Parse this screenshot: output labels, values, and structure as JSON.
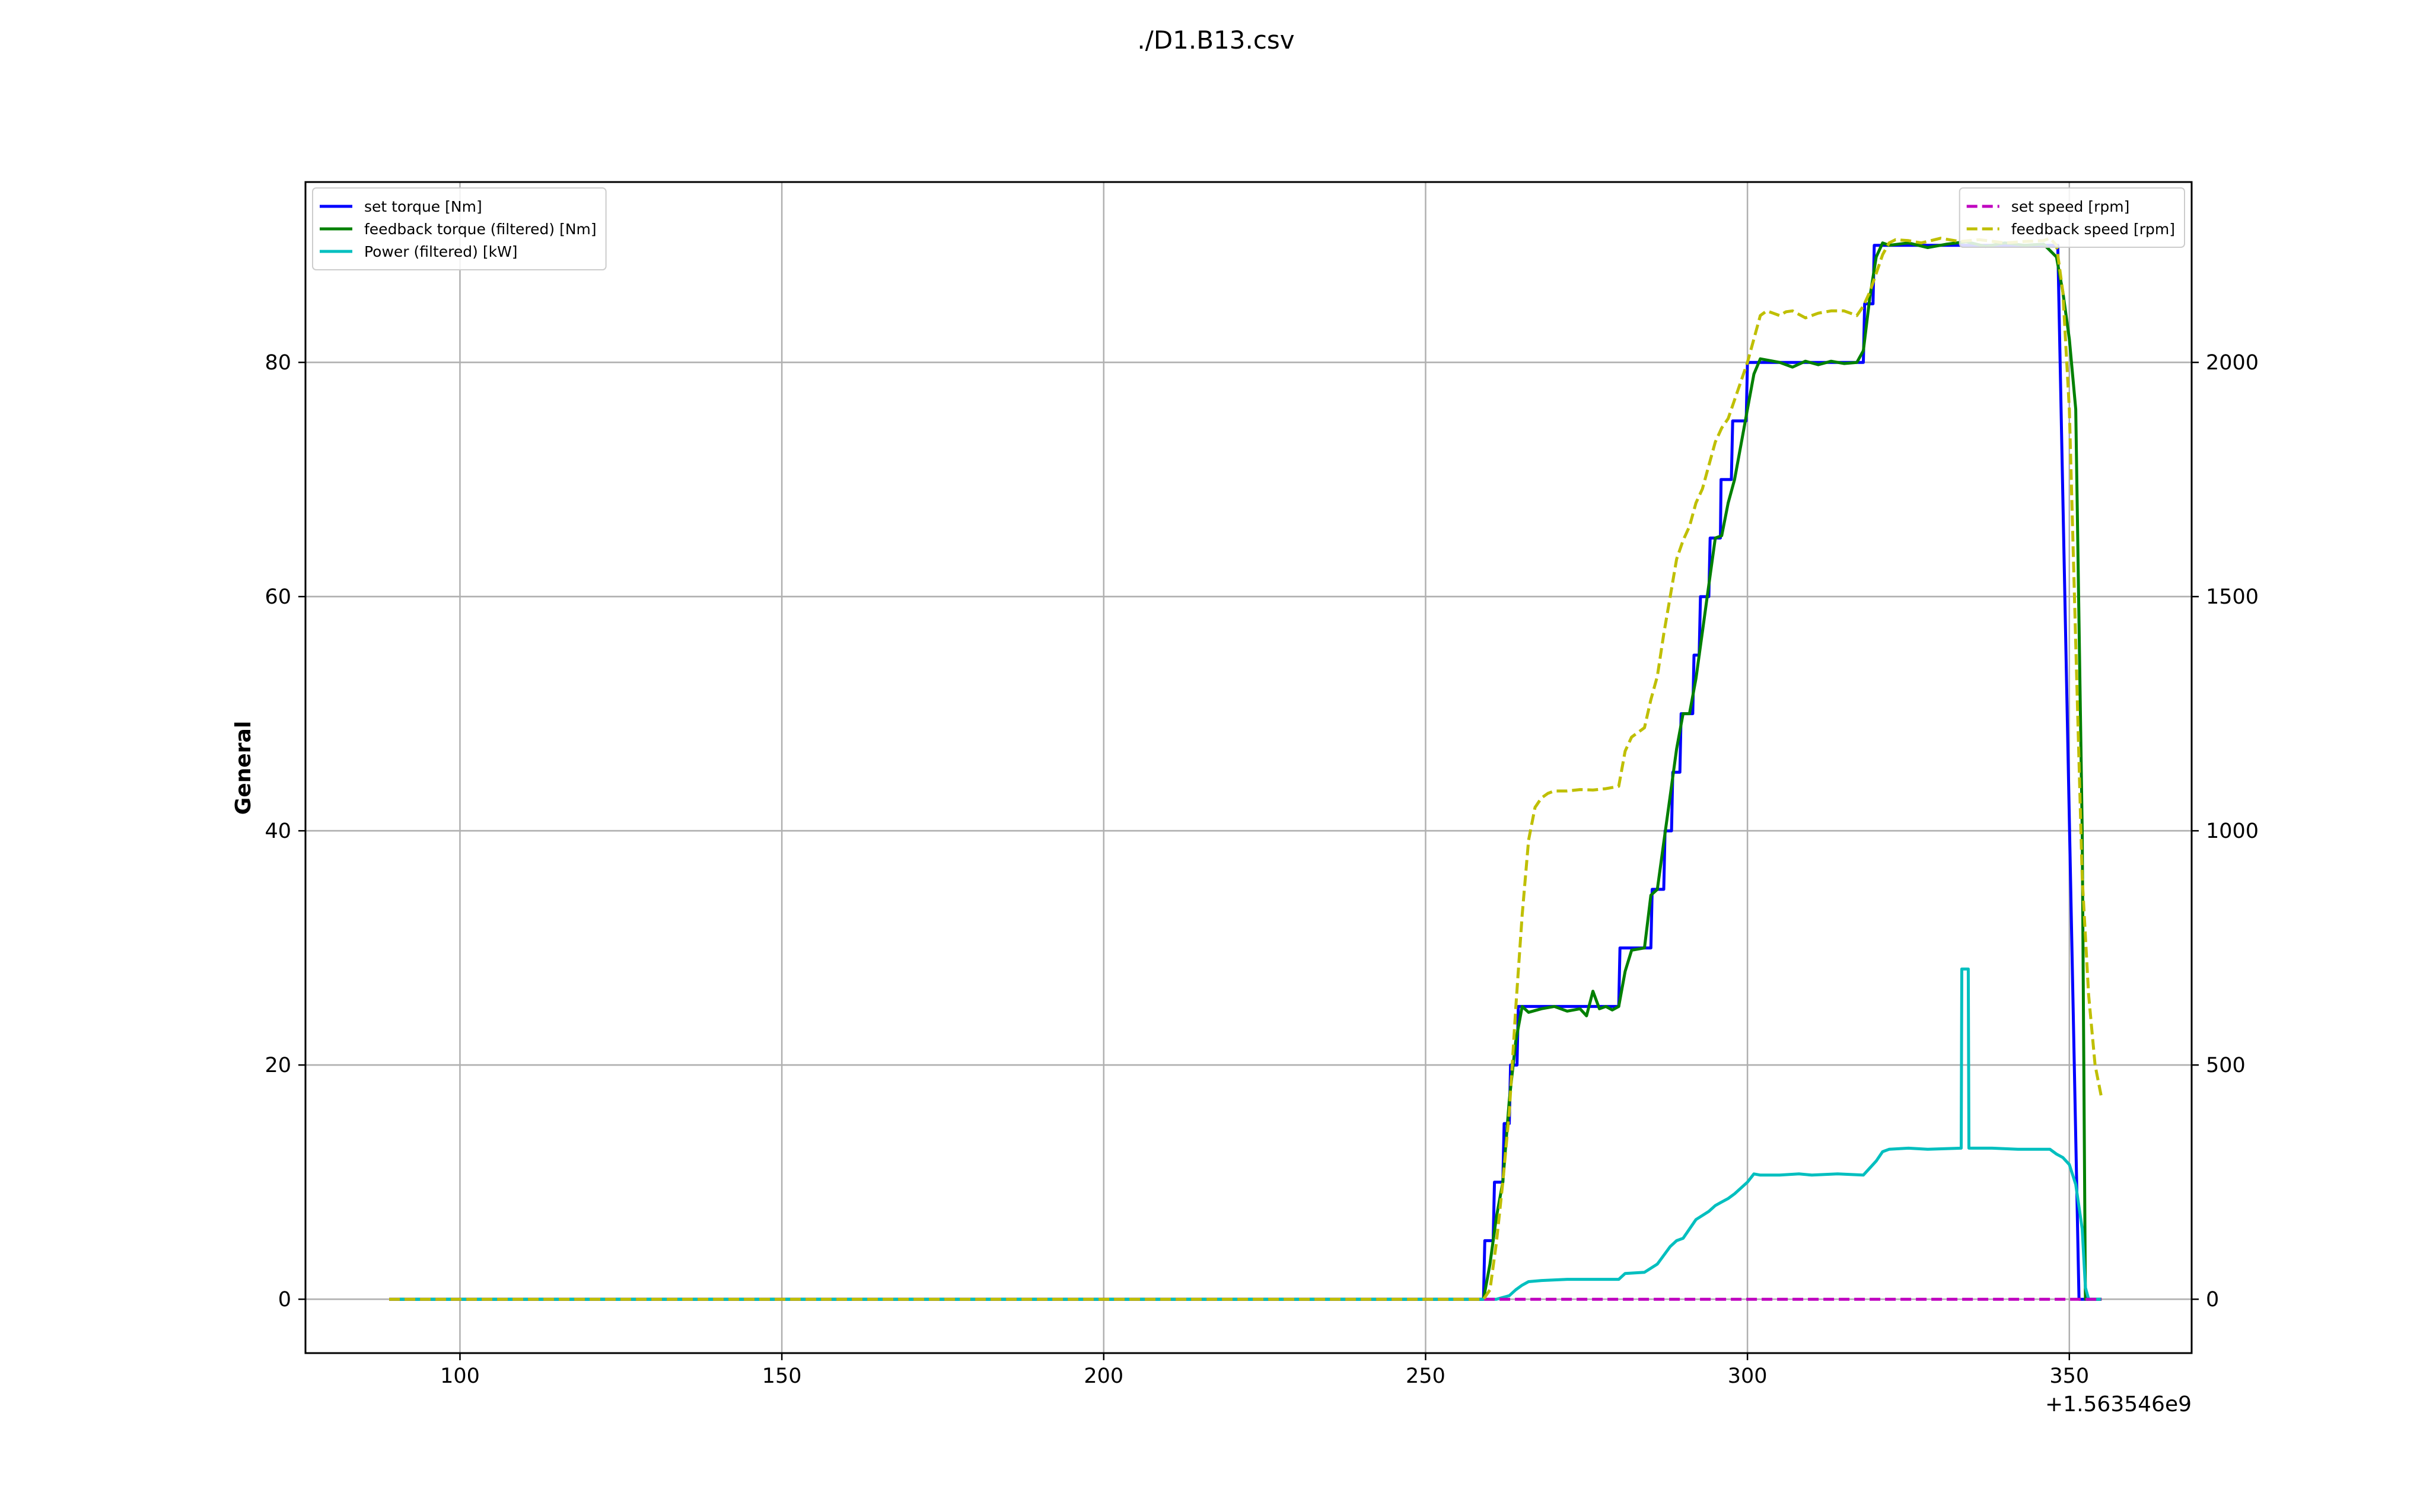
{
  "chart_data": {
    "type": "line",
    "title": "./D1.B13.csv",
    "xlabel": "",
    "ylabel": "General",
    "y2label": "",
    "x_offset_label": "+1.563546e9",
    "xlim": [
      76,
      369
    ],
    "ylim": [
      -4.6,
      95.4
    ],
    "y2lim": [
      -115,
      2385
    ],
    "grid": true,
    "x_ticks": [
      {
        "value": 100,
        "label": "100"
      },
      {
        "value": 150,
        "label": "150"
      },
      {
        "value": 200,
        "label": "200"
      },
      {
        "value": 250,
        "label": "250"
      },
      {
        "value": 300,
        "label": "300"
      },
      {
        "value": 350,
        "label": "350"
      }
    ],
    "y_ticks": [
      {
        "value": 0,
        "label": "0"
      },
      {
        "value": 20,
        "label": "20"
      },
      {
        "value": 40,
        "label": "40"
      },
      {
        "value": 60,
        "label": "60"
      },
      {
        "value": 80,
        "label": "80"
      }
    ],
    "y2_ticks": [
      {
        "value": 0,
        "label": "0"
      },
      {
        "value": 500,
        "label": "500"
      },
      {
        "value": 1000,
        "label": "1000"
      },
      {
        "value": 1500,
        "label": "1500"
      },
      {
        "value": 2000,
        "label": "2000"
      }
    ],
    "legend_left_placement": "top-left",
    "legend_right_placement": "top-right",
    "series": [
      {
        "name": "set torque [Nm]",
        "axis": "left",
        "color": "#0000ff",
        "dash": "solid",
        "x": [
          89,
          259,
          259.2,
          260.5,
          260.7,
          262,
          262.2,
          263,
          263.2,
          264.2,
          264.4,
          280,
          280.2,
          285,
          285.2,
          287,
          287.2,
          288.2,
          288.4,
          289.5,
          289.7,
          291.5,
          291.7,
          292.5,
          292.7,
          294,
          294.2,
          295.8,
          295.9,
          297.5,
          297.7,
          299.8,
          300,
          318,
          318.2,
          319.5,
          319.7,
          348.2,
          351.5,
          355
        ],
        "y": [
          0,
          0,
          5,
          5,
          10,
          10,
          15,
          15,
          20,
          20,
          25,
          25,
          30,
          30,
          35,
          35,
          40,
          40,
          45,
          45,
          50,
          50,
          55,
          55,
          60,
          60,
          65,
          65,
          70,
          70,
          75,
          75,
          80,
          80,
          85,
          85,
          90,
          90,
          0,
          0
        ]
      },
      {
        "name": "feedback torque (filtered) [Nm]",
        "axis": "left",
        "color": "#008000",
        "dash": "solid",
        "x": [
          89,
          259,
          260,
          261,
          262,
          263,
          264,
          265,
          266,
          268,
          270,
          272,
          274,
          275,
          276,
          277,
          278,
          279,
          280,
          281,
          282,
          284,
          285,
          286,
          287,
          288,
          289,
          290,
          291,
          292,
          293,
          294,
          295,
          296,
          297,
          298,
          299,
          300,
          301,
          302,
          303,
          305,
          307,
          309,
          311,
          313,
          315,
          317,
          318,
          319,
          320,
          321,
          322,
          325,
          328,
          331,
          334,
          337,
          340,
          343,
          346,
          348,
          349,
          350,
          351,
          352,
          352.5,
          353,
          355
        ],
        "y": [
          0,
          0,
          3,
          7,
          10,
          17,
          22,
          25,
          24.5,
          24.8,
          25,
          24.6,
          24.8,
          24.2,
          26.3,
          24.8,
          25,
          24.7,
          25,
          28,
          29.8,
          30,
          34.5,
          35,
          39,
          43,
          47,
          50,
          50,
          53,
          57,
          61,
          65,
          65.2,
          68,
          70,
          73,
          76,
          79,
          80.3,
          80.2,
          80,
          79.6,
          80.1,
          79.8,
          80.1,
          79.9,
          80,
          81,
          85.5,
          89,
          90.2,
          90,
          90.2,
          89.8,
          90.1,
          90.3,
          89.9,
          90.2,
          90,
          90.1,
          89,
          86,
          82,
          76,
          40,
          0,
          0,
          0
        ]
      },
      {
        "name": "Power (filtered) [kW]",
        "axis": "left",
        "color": "#00bfbf",
        "dash": "solid",
        "x": [
          89,
          261,
          263,
          264,
          265,
          266,
          268,
          272,
          276,
          280,
          281,
          284,
          286,
          288,
          289,
          290,
          291,
          292,
          294,
          295,
          296,
          297,
          298,
          299,
          300,
          301,
          302,
          305,
          308,
          310,
          314,
          318,
          319,
          320,
          321,
          322,
          325,
          328,
          333.2,
          333.3,
          334.3,
          334.4,
          338,
          342,
          345,
          347,
          348,
          349,
          350,
          351,
          352,
          352.5,
          353,
          355
        ],
        "y": [
          0,
          0,
          0.3,
          0.8,
          1.2,
          1.5,
          1.6,
          1.7,
          1.7,
          1.7,
          2.2,
          2.3,
          3,
          4.5,
          5,
          5.2,
          6,
          6.8,
          7.5,
          8,
          8.3,
          8.6,
          9,
          9.5,
          10,
          10.7,
          10.6,
          10.6,
          10.7,
          10.6,
          10.7,
          10.6,
          11.2,
          11.8,
          12.6,
          12.8,
          12.9,
          12.8,
          12.9,
          28.2,
          28.2,
          12.9,
          12.9,
          12.8,
          12.8,
          12.8,
          12.4,
          12.1,
          11.5,
          9.8,
          6,
          1,
          0,
          0
        ]
      },
      {
        "name": "set speed [rpm]",
        "axis": "right",
        "color": "#bf00bf",
        "dash": "dashed",
        "x": [
          89,
          355
        ],
        "y": [
          0,
          0
        ]
      },
      {
        "name": "feedback speed [rpm]",
        "axis": "right",
        "color": "#bfbf00",
        "dash": "dashed",
        "x": [
          89,
          259,
          260,
          261,
          262,
          263,
          264,
          265,
          266,
          267,
          268,
          269,
          270,
          272,
          274,
          276,
          278,
          280,
          281,
          282,
          284,
          285,
          286,
          287,
          288,
          289,
          290,
          291,
          292,
          293,
          294,
          295,
          296,
          297,
          298,
          299,
          300,
          301,
          302,
          303,
          304,
          305,
          306,
          307,
          309,
          311,
          313,
          315,
          317,
          318,
          319,
          320,
          321,
          322,
          323,
          325,
          327,
          330,
          333,
          336,
          340,
          343,
          346,
          347,
          348,
          349,
          350,
          351,
          352,
          353,
          354,
          355
        ],
        "y": [
          0,
          0,
          20,
          120,
          250,
          400,
          620,
          820,
          980,
          1050,
          1070,
          1080,
          1085,
          1085,
          1088,
          1087,
          1090,
          1095,
          1170,
          1200,
          1220,
          1280,
          1330,
          1420,
          1500,
          1580,
          1620,
          1650,
          1700,
          1730,
          1780,
          1830,
          1860,
          1880,
          1920,
          1960,
          2000,
          2050,
          2100,
          2110,
          2105,
          2100,
          2108,
          2110,
          2095,
          2105,
          2110,
          2110,
          2100,
          2120,
          2150,
          2190,
          2230,
          2255,
          2262,
          2260,
          2255,
          2265,
          2258,
          2262,
          2255,
          2258,
          2260,
          2265,
          2250,
          2150,
          1900,
          1400,
          900,
          650,
          500,
          430
        ]
      }
    ]
  }
}
